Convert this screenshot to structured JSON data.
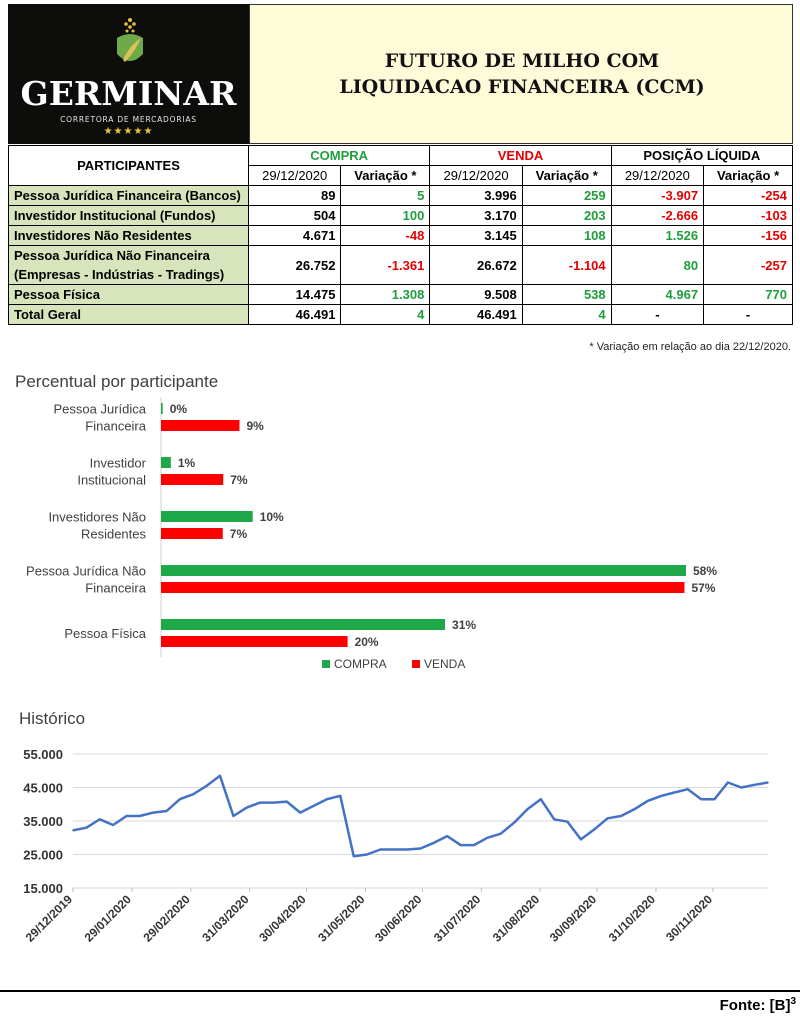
{
  "logo": {
    "name": "GERMINAR",
    "tagline": "CORRETORA DE MERCADORIAS",
    "stars": "★★★★★"
  },
  "title": {
    "line1": "FUTURO DE MILHO COM",
    "line2": "LIQUIDACAO FINANCEIRA (CCM)"
  },
  "colors": {
    "compra": "#1fa84a",
    "venda": "#ff0000",
    "label_bg": "#d8e4bc",
    "title_bg": "#fefbd8",
    "line": "#4472c4"
  },
  "table": {
    "participants_header": "PARTICIPANTES",
    "groups": {
      "compra": "COMPRA",
      "venda": "VENDA",
      "posicao": "POSIÇÃO LÍQUIDA"
    },
    "date_col": "29/12/2020",
    "var_col": "Variação *",
    "rows": [
      {
        "label": "Pessoa Jurídica Financeira (Bancos)",
        "compra": "89",
        "compra_var": "5",
        "venda": "3.996",
        "venda_var": "259",
        "liq": "-3.907",
        "liq_var": "-254"
      },
      {
        "label": "Investidor Institucional (Fundos)",
        "compra": "504",
        "compra_var": "100",
        "venda": "3.170",
        "venda_var": "203",
        "liq": "-2.666",
        "liq_var": "-103"
      },
      {
        "label": "Investidores Não Residentes",
        "compra": "4.671",
        "compra_var": "-48",
        "venda": "3.145",
        "venda_var": "108",
        "liq": "1.526",
        "liq_var": "-156"
      },
      {
        "label": "Pessoa Jurídica Não Financeira",
        "label2": "(Empresas - Indústrias - Tradings)",
        "compra": "26.752",
        "compra_var": "-1.361",
        "venda": "26.672",
        "venda_var": "-1.104",
        "liq": "80",
        "liq_var": "-257"
      },
      {
        "label": "Pessoa Física",
        "compra": "14.475",
        "compra_var": "1.308",
        "venda": "9.508",
        "venda_var": "538",
        "liq": "4.967",
        "liq_var": "770"
      },
      {
        "label": "Total Geral",
        "compra": "46.491",
        "compra_var": "4",
        "venda": "46.491",
        "venda_var": "4",
        "liq": "-",
        "liq_var": "-"
      }
    ],
    "note": "* Variação em relação ao dia 22/12/2020."
  },
  "chart_data": [
    {
      "type": "bar",
      "orientation": "horizontal",
      "title": "Percentual por participante",
      "categories": [
        [
          "Pessoa Jurídica",
          "Financeira"
        ],
        [
          "Investidor",
          "Institucional"
        ],
        [
          "Investidores Não",
          "Residentes"
        ],
        [
          "Pessoa Jurídica Não",
          "Financeira"
        ],
        [
          "Pessoa Física"
        ]
      ],
      "series": [
        {
          "name": "COMPRA",
          "values": [
            0.19,
            1.08,
            10.05,
            57.54,
            31.13
          ],
          "labels": [
            "0%",
            "1%",
            "10%",
            "58%",
            "31%"
          ],
          "color": "#1fa84a"
        },
        {
          "name": "VENDA",
          "values": [
            8.6,
            6.82,
            6.77,
            57.37,
            20.45
          ],
          "labels": [
            "9%",
            "7%",
            "7%",
            "57%",
            "20%"
          ],
          "color": "#ff0000"
        }
      ],
      "xlim": [
        0,
        60
      ],
      "legend": "bottom"
    },
    {
      "type": "line",
      "title": "Histórico",
      "x": [
        "29/12/2019",
        "06/01/2020",
        "13/01/2020",
        "20/01/2020",
        "27/01/2020",
        "03/02/2020",
        "10/02/2020",
        "17/02/2020",
        "24/02/2020",
        "02/03/2020",
        "09/03/2020",
        "16/03/2020",
        "23/03/2020",
        "30/03/2020",
        "06/04/2020",
        "13/04/2020",
        "20/04/2020",
        "27/04/2020",
        "04/05/2020",
        "11/05/2020",
        "18/05/2020",
        "25/05/2020",
        "01/06/2020",
        "08/06/2020",
        "15/06/2020",
        "22/06/2020",
        "29/06/2020",
        "06/07/2020",
        "13/07/2020",
        "20/07/2020",
        "27/07/2020",
        "03/08/2020",
        "10/08/2020",
        "17/08/2020",
        "24/08/2020",
        "31/08/2020",
        "07/09/2020",
        "14/09/2020",
        "21/09/2020",
        "28/09/2020",
        "05/10/2020",
        "12/10/2020",
        "19/10/2020",
        "26/10/2020",
        "02/11/2020",
        "09/11/2020",
        "16/11/2020",
        "23/11/2020",
        "30/11/2020",
        "07/12/2020",
        "14/12/2020",
        "21/12/2020",
        "29/12/2020"
      ],
      "values": [
        32200,
        33000,
        35500,
        33800,
        36500,
        36500,
        37500,
        38000,
        41500,
        43000,
        45500,
        48500,
        36500,
        39000,
        40500,
        40500,
        40800,
        37500,
        39500,
        41500,
        42500,
        24500,
        25000,
        26500,
        26500,
        26500,
        26800,
        28500,
        30500,
        27800,
        27800,
        30000,
        31200,
        34500,
        38500,
        41500,
        35500,
        34800,
        29500,
        32500,
        35800,
        36500,
        38500,
        41000,
        42500,
        43500,
        44500,
        41500,
        41500,
        46500,
        45000,
        45800,
        46500
      ],
      "ylim": [
        15000,
        55000
      ],
      "yticks": [
        "15.000",
        "25.000",
        "35.000",
        "45.000",
        "55.000"
      ],
      "xticks": [
        "29/12/2019",
        "29/01/2020",
        "29/02/2020",
        "31/03/2020",
        "30/04/2020",
        "31/05/2020",
        "30/06/2020",
        "31/07/2020",
        "31/08/2020",
        "30/09/2020",
        "31/10/2020",
        "30/11/2020"
      ],
      "grid": true
    }
  ],
  "source": {
    "label": "Fonte: [B]",
    "sup": "3"
  }
}
